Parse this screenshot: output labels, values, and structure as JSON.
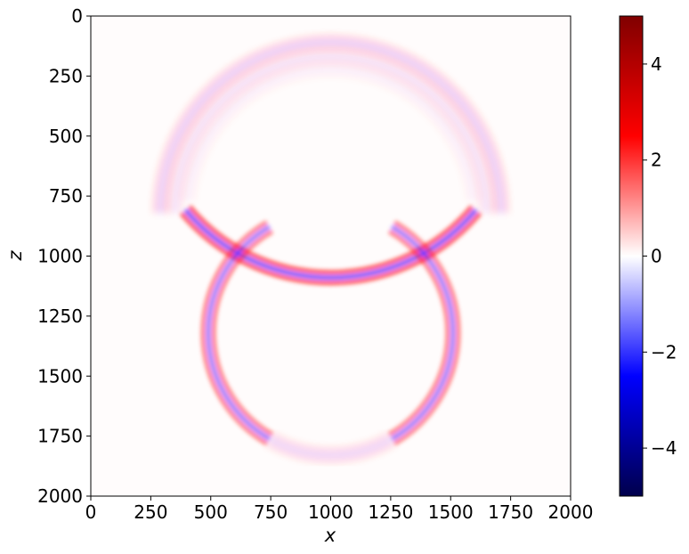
{
  "chart_data": {
    "type": "heatmap",
    "title": "",
    "xlabel": "x",
    "ylabel": "z",
    "xlim": [
      0,
      2000
    ],
    "ylim": [
      2000,
      0
    ],
    "x_ticks": [
      0,
      250,
      500,
      750,
      1000,
      1250,
      1500,
      1750,
      2000
    ],
    "y_ticks": [
      0,
      250,
      500,
      750,
      1000,
      1250,
      1500,
      1750,
      2000
    ],
    "x_tick_labels": [
      "0",
      "250",
      "500",
      "750",
      "1000",
      "1250",
      "1500",
      "1750",
      "2000"
    ],
    "y_tick_labels": [
      "0",
      "250",
      "500",
      "750",
      "1000",
      "1250",
      "1500",
      "1750",
      "2000"
    ],
    "grid": false,
    "colormap": "seismic",
    "colorbar": {
      "range": [
        -5,
        5
      ],
      "ticks": [
        -4,
        -2,
        0,
        2,
        4
      ],
      "tick_labels": [
        "−4",
        "−2",
        "0",
        "2",
        "4"
      ],
      "colors": [
        "#00004c",
        "#0000ff",
        "#ffffff",
        "#ff0000",
        "#800000"
      ],
      "placement": "right"
    },
    "features": [
      {
        "shape": "arc",
        "center": [
          1000,
          820
        ],
        "radius": 710,
        "amplitude": 0.35,
        "from_deg": 180,
        "to_deg": 360
      },
      {
        "shape": "arc",
        "center": [
          1000,
          820
        ],
        "radius": 650,
        "amplitude": 0.2,
        "from_deg": 180,
        "to_deg": 360
      },
      {
        "shape": "arc",
        "center": [
          1000,
          820
        ],
        "radius": 600,
        "amplitude": 0.1,
        "from_deg": 185,
        "to_deg": 355
      },
      {
        "shape": "arc",
        "center": [
          1000,
          300
        ],
        "radius": 790,
        "amplitude": 1.2,
        "from_deg": 40,
        "to_deg": 140
      },
      {
        "shape": "arc",
        "center": [
          1000,
          1320
        ],
        "radius": 510,
        "amplitude": 0.9,
        "from_deg": 120,
        "to_deg": 240
      },
      {
        "shape": "arc",
        "center": [
          1000,
          1320
        ],
        "radius": 510,
        "amplitude": 0.9,
        "from_deg": -60,
        "to_deg": 60
      },
      {
        "shape": "arc",
        "center": [
          1000,
          1320
        ],
        "radius": 510,
        "amplitude": 0.3,
        "from_deg": 60,
        "to_deg": 120
      }
    ]
  }
}
